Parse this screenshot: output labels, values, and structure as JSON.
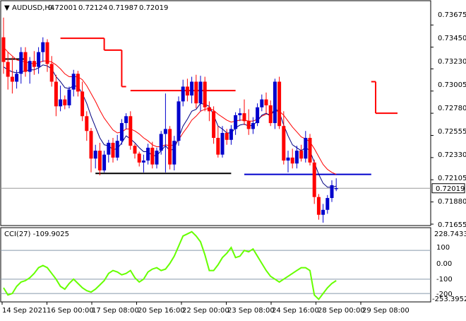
{
  "chart_data": {
    "type": "candlestick",
    "symbol": "AUDUSD,H4",
    "ohlc_header": [
      "0.72001",
      "0.72124",
      "0.71987",
      "0.72019"
    ],
    "price_axis": {
      "ticks": [
        "0.73675",
        "0.73450",
        "0.73230",
        "0.73005",
        "0.72780",
        "0.72555",
        "0.72330",
        "0.72105",
        "0.71880",
        "0.71655"
      ],
      "range": [
        0.71655,
        0.73785
      ],
      "current_price": "0.72019"
    },
    "time_axis": {
      "labels": [
        "14 Sep 2021",
        "16 Sep 00:00",
        "17 Sep 08:00",
        "20 Sep 16:00",
        "22 Sep 00:00",
        "23 Sep 08:00",
        "24 Sep 16:00",
        "28 Sep 00:00",
        "29 Sep 08:00"
      ]
    },
    "candles": [
      {
        "o": 0.7355,
        "h": 0.7375,
        "l": 0.7318,
        "c": 0.733
      },
      {
        "o": 0.733,
        "h": 0.734,
        "l": 0.7302,
        "c": 0.7315
      },
      {
        "o": 0.7315,
        "h": 0.7335,
        "l": 0.7298,
        "c": 0.731
      },
      {
        "o": 0.731,
        "h": 0.7322,
        "l": 0.7303,
        "c": 0.7318
      },
      {
        "o": 0.7318,
        "h": 0.7345,
        "l": 0.7308,
        "c": 0.734
      },
      {
        "o": 0.734,
        "h": 0.7345,
        "l": 0.7315,
        "c": 0.732
      },
      {
        "o": 0.732,
        "h": 0.7335,
        "l": 0.7308,
        "c": 0.7331
      },
      {
        "o": 0.7331,
        "h": 0.7341,
        "l": 0.7317,
        "c": 0.7325
      },
      {
        "o": 0.7325,
        "h": 0.7345,
        "l": 0.7318,
        "c": 0.734
      },
      {
        "o": 0.734,
        "h": 0.7355,
        "l": 0.733,
        "c": 0.735
      },
      {
        "o": 0.735,
        "h": 0.7353,
        "l": 0.732,
        "c": 0.7328
      },
      {
        "o": 0.7328,
        "h": 0.7336,
        "l": 0.7305,
        "c": 0.731
      },
      {
        "o": 0.731,
        "h": 0.7317,
        "l": 0.7275,
        "c": 0.7285
      },
      {
        "o": 0.7285,
        "h": 0.7306,
        "l": 0.728,
        "c": 0.7292
      },
      {
        "o": 0.7292,
        "h": 0.7296,
        "l": 0.7282,
        "c": 0.7286
      },
      {
        "o": 0.7286,
        "h": 0.7305,
        "l": 0.7283,
        "c": 0.7302
      },
      {
        "o": 0.7302,
        "h": 0.7322,
        "l": 0.7295,
        "c": 0.7318
      },
      {
        "o": 0.7318,
        "h": 0.7321,
        "l": 0.7295,
        "c": 0.73
      },
      {
        "o": 0.73,
        "h": 0.731,
        "l": 0.727,
        "c": 0.7275
      },
      {
        "o": 0.7275,
        "h": 0.728,
        "l": 0.725,
        "c": 0.726
      },
      {
        "o": 0.726,
        "h": 0.7263,
        "l": 0.7218,
        "c": 0.7232
      },
      {
        "o": 0.7232,
        "h": 0.7246,
        "l": 0.7222,
        "c": 0.724
      },
      {
        "o": 0.724,
        "h": 0.7248,
        "l": 0.7215,
        "c": 0.722
      },
      {
        "o": 0.722,
        "h": 0.724,
        "l": 0.7218,
        "c": 0.7236
      },
      {
        "o": 0.7236,
        "h": 0.7251,
        "l": 0.7228,
        "c": 0.7248
      },
      {
        "o": 0.7248,
        "h": 0.7253,
        "l": 0.7228,
        "c": 0.7233
      },
      {
        "o": 0.7233,
        "h": 0.7256,
        "l": 0.723,
        "c": 0.725
      },
      {
        "o": 0.725,
        "h": 0.7272,
        "l": 0.7246,
        "c": 0.7268
      },
      {
        "o": 0.7268,
        "h": 0.7278,
        "l": 0.7262,
        "c": 0.7275
      },
      {
        "o": 0.7275,
        "h": 0.728,
        "l": 0.7241,
        "c": 0.7245
      },
      {
        "o": 0.7245,
        "h": 0.7247,
        "l": 0.7232,
        "c": 0.7237
      },
      {
        "o": 0.7237,
        "h": 0.7239,
        "l": 0.7224,
        "c": 0.7228
      },
      {
        "o": 0.7228,
        "h": 0.7236,
        "l": 0.7218,
        "c": 0.723
      },
      {
        "o": 0.723,
        "h": 0.7247,
        "l": 0.7226,
        "c": 0.7243
      },
      {
        "o": 0.7243,
        "h": 0.7249,
        "l": 0.7222,
        "c": 0.7226
      },
      {
        "o": 0.7226,
        "h": 0.7243,
        "l": 0.7222,
        "c": 0.724
      },
      {
        "o": 0.724,
        "h": 0.726,
        "l": 0.7236,
        "c": 0.7257
      },
      {
        "o": 0.7257,
        "h": 0.7298,
        "l": 0.7218,
        "c": 0.7262
      },
      {
        "o": 0.7262,
        "h": 0.7265,
        "l": 0.7221,
        "c": 0.7226
      },
      {
        "o": 0.7226,
        "h": 0.7255,
        "l": 0.722,
        "c": 0.725
      },
      {
        "o": 0.725,
        "h": 0.7295,
        "l": 0.7245,
        "c": 0.729
      },
      {
        "o": 0.729,
        "h": 0.7312,
        "l": 0.7285,
        "c": 0.7305
      },
      {
        "o": 0.7305,
        "h": 0.7313,
        "l": 0.729,
        "c": 0.7296
      },
      {
        "o": 0.7296,
        "h": 0.7315,
        "l": 0.7288,
        "c": 0.731
      },
      {
        "o": 0.731,
        "h": 0.7317,
        "l": 0.7283,
        "c": 0.7288
      },
      {
        "o": 0.7288,
        "h": 0.7316,
        "l": 0.728,
        "c": 0.731
      },
      {
        "o": 0.731,
        "h": 0.7315,
        "l": 0.728,
        "c": 0.7284
      },
      {
        "o": 0.7284,
        "h": 0.729,
        "l": 0.727,
        "c": 0.728
      },
      {
        "o": 0.728,
        "h": 0.7285,
        "l": 0.7247,
        "c": 0.7253
      },
      {
        "o": 0.7253,
        "h": 0.7265,
        "l": 0.7233,
        "c": 0.7236
      },
      {
        "o": 0.7236,
        "h": 0.7265,
        "l": 0.7233,
        "c": 0.7258
      },
      {
        "o": 0.7258,
        "h": 0.7262,
        "l": 0.7246,
        "c": 0.7251
      },
      {
        "o": 0.7251,
        "h": 0.7266,
        "l": 0.7246,
        "c": 0.7262
      },
      {
        "o": 0.7262,
        "h": 0.7279,
        "l": 0.7256,
        "c": 0.7276
      },
      {
        "o": 0.7276,
        "h": 0.7283,
        "l": 0.727,
        "c": 0.7278
      },
      {
        "o": 0.7278,
        "h": 0.7292,
        "l": 0.7266,
        "c": 0.727
      },
      {
        "o": 0.727,
        "h": 0.7282,
        "l": 0.7256,
        "c": 0.7262
      },
      {
        "o": 0.7262,
        "h": 0.7274,
        "l": 0.7257,
        "c": 0.7268
      },
      {
        "o": 0.7268,
        "h": 0.7288,
        "l": 0.7265,
        "c": 0.7284
      },
      {
        "o": 0.7284,
        "h": 0.7297,
        "l": 0.728,
        "c": 0.7292
      },
      {
        "o": 0.7292,
        "h": 0.7299,
        "l": 0.7278,
        "c": 0.7286
      },
      {
        "o": 0.7286,
        "h": 0.7291,
        "l": 0.7265,
        "c": 0.7268
      },
      {
        "o": 0.7268,
        "h": 0.7313,
        "l": 0.7262,
        "c": 0.731
      },
      {
        "o": 0.731,
        "h": 0.7315,
        "l": 0.7262,
        "c": 0.7265
      },
      {
        "o": 0.7265,
        "h": 0.728,
        "l": 0.7226,
        "c": 0.723
      },
      {
        "o": 0.723,
        "h": 0.724,
        "l": 0.7218,
        "c": 0.7233
      },
      {
        "o": 0.7233,
        "h": 0.7242,
        "l": 0.7222,
        "c": 0.7227
      },
      {
        "o": 0.7227,
        "h": 0.7245,
        "l": 0.7222,
        "c": 0.724
      },
      {
        "o": 0.724,
        "h": 0.7246,
        "l": 0.7229,
        "c": 0.7232
      },
      {
        "o": 0.7232,
        "h": 0.726,
        "l": 0.7228,
        "c": 0.7253
      },
      {
        "o": 0.7253,
        "h": 0.7257,
        "l": 0.7225,
        "c": 0.7228
      },
      {
        "o": 0.7228,
        "h": 0.7231,
        "l": 0.7186,
        "c": 0.7193
      },
      {
        "o": 0.7193,
        "h": 0.7196,
        "l": 0.717,
        "c": 0.7175
      },
      {
        "o": 0.7175,
        "h": 0.7186,
        "l": 0.7167,
        "c": 0.718
      },
      {
        "o": 0.718,
        "h": 0.7195,
        "l": 0.7176,
        "c": 0.7192
      },
      {
        "o": 0.7192,
        "h": 0.721,
        "l": 0.7188,
        "c": 0.7205
      },
      {
        "o": 0.7201,
        "h": 0.7212,
        "l": 0.7199,
        "c": 0.7202
      }
    ],
    "lines": {
      "ma_fast": [
        0.7325,
        0.7322,
        0.732,
        0.7319,
        0.732,
        0.7321,
        0.7322,
        0.7322,
        0.7324,
        0.7327,
        0.7326,
        0.7323,
        0.7315,
        0.731,
        0.7304,
        0.7303,
        0.7306,
        0.7305,
        0.7298,
        0.7288,
        0.7275,
        0.7264,
        0.7253,
        0.7246,
        0.7245,
        0.7241,
        0.7242,
        0.7248,
        0.7255,
        0.7252,
        0.7248,
        0.7243,
        0.7239,
        0.7239,
        0.7235,
        0.7235,
        0.724,
        0.7245,
        0.724,
        0.7242,
        0.7253,
        0.7265,
        0.7272,
        0.728,
        0.7282,
        0.7288,
        0.7287,
        0.7285,
        0.7276,
        0.7265,
        0.7262,
        0.7258,
        0.7258,
        0.7263,
        0.7266,
        0.7267,
        0.7265,
        0.7266,
        0.727,
        0.7276,
        0.7278,
        0.7275,
        0.7283,
        0.7279,
        0.7266,
        0.7255,
        0.7246,
        0.7243,
        0.724,
        0.7243,
        0.724,
        0.7228,
        0.7216,
        0.7207,
        0.7203,
        0.7203,
        0.7204
      ],
      "ma_slow": [
        0.7345,
        0.734,
        0.7336,
        0.7332,
        0.7331,
        0.733,
        0.7329,
        0.7328,
        0.7329,
        0.7331,
        0.7331,
        0.733,
        0.7327,
        0.7323,
        0.7318,
        0.7315,
        0.7315,
        0.7315,
        0.7312,
        0.7306,
        0.7298,
        0.729,
        0.7281,
        0.7273,
        0.7267,
        0.7261,
        0.7258,
        0.7259,
        0.7262,
        0.7262,
        0.726,
        0.7257,
        0.7253,
        0.725,
        0.7246,
        0.7244,
        0.7244,
        0.7246,
        0.7245,
        0.7246,
        0.7251,
        0.7258,
        0.7264,
        0.7271,
        0.7275,
        0.728,
        0.7282,
        0.7283,
        0.7281,
        0.7277,
        0.7274,
        0.7271,
        0.7269,
        0.727,
        0.7271,
        0.7271,
        0.727,
        0.727,
        0.7272,
        0.7275,
        0.7277,
        0.7277,
        0.728,
        0.728,
        0.7276,
        0.727,
        0.7264,
        0.7259,
        0.7254,
        0.7252,
        0.7249,
        0.7242,
        0.7234,
        0.7226,
        0.7221,
        0.7218,
        0.7216
      ]
    },
    "stop_segments": [
      {
        "x0": 0,
        "x1": 5,
        "y": 0.7333,
        "color": "#000000"
      },
      {
        "x0": 13,
        "x1": 23,
        "y": 0.7354,
        "color": "#ff0000"
      },
      {
        "x0": 23,
        "x1": 27,
        "y": 0.7342,
        "color": "#ff0000"
      },
      {
        "x0": 27,
        "x1": 28,
        "y": 0.7305,
        "color": "#ff0000"
      },
      {
        "x0": 29,
        "x1": 53,
        "y": 0.7301,
        "color": "#ff0000"
      },
      {
        "x0": 21,
        "x1": 52,
        "y": 0.7217,
        "color": "#000000"
      },
      {
        "x0": 55,
        "x1": 84,
        "y": 0.7216,
        "color": "#0000cc"
      },
      {
        "x0": 84,
        "x1": 85,
        "y": 0.731,
        "color": "#ff0000"
      },
      {
        "x0": 85,
        "x1": 90,
        "y": 0.7278,
        "color": "#ff0000"
      }
    ],
    "cci": {
      "label": "CCI(27) -109.9025",
      "ticks": [
        "228.7433",
        "100",
        "0.00",
        "-100",
        "-200",
        "-253.3952"
      ],
      "levels": [
        100,
        -100,
        -200
      ],
      "range": [
        -253.3952,
        228.7433
      ],
      "values": [
        -160,
        -210,
        -200,
        -150,
        -120,
        -110,
        -90,
        -60,
        -20,
        -5,
        -20,
        -60,
        -100,
        -150,
        -170,
        -130,
        -100,
        -130,
        -160,
        -180,
        -190,
        -170,
        -140,
        -110,
        -60,
        -40,
        -50,
        -70,
        -60,
        -40,
        -90,
        -120,
        -100,
        -50,
        -30,
        -20,
        -40,
        -30,
        10,
        60,
        130,
        200,
        215,
        230,
        200,
        160,
        70,
        -40,
        -40,
        0,
        50,
        80,
        120,
        50,
        60,
        100,
        90,
        110,
        60,
        10,
        -40,
        -80,
        -100,
        -120,
        -100,
        -80,
        -60,
        -40,
        -20,
        -20,
        -40,
        -210,
        -240,
        -200,
        -160,
        -130,
        -110
      ]
    },
    "colors": {
      "bull": "#0000cc",
      "bear": "#ff0000",
      "ma_fast": "#000080",
      "ma_slow": "#ff0000",
      "cci": "#66ff00",
      "grid": "#8899aa"
    }
  }
}
